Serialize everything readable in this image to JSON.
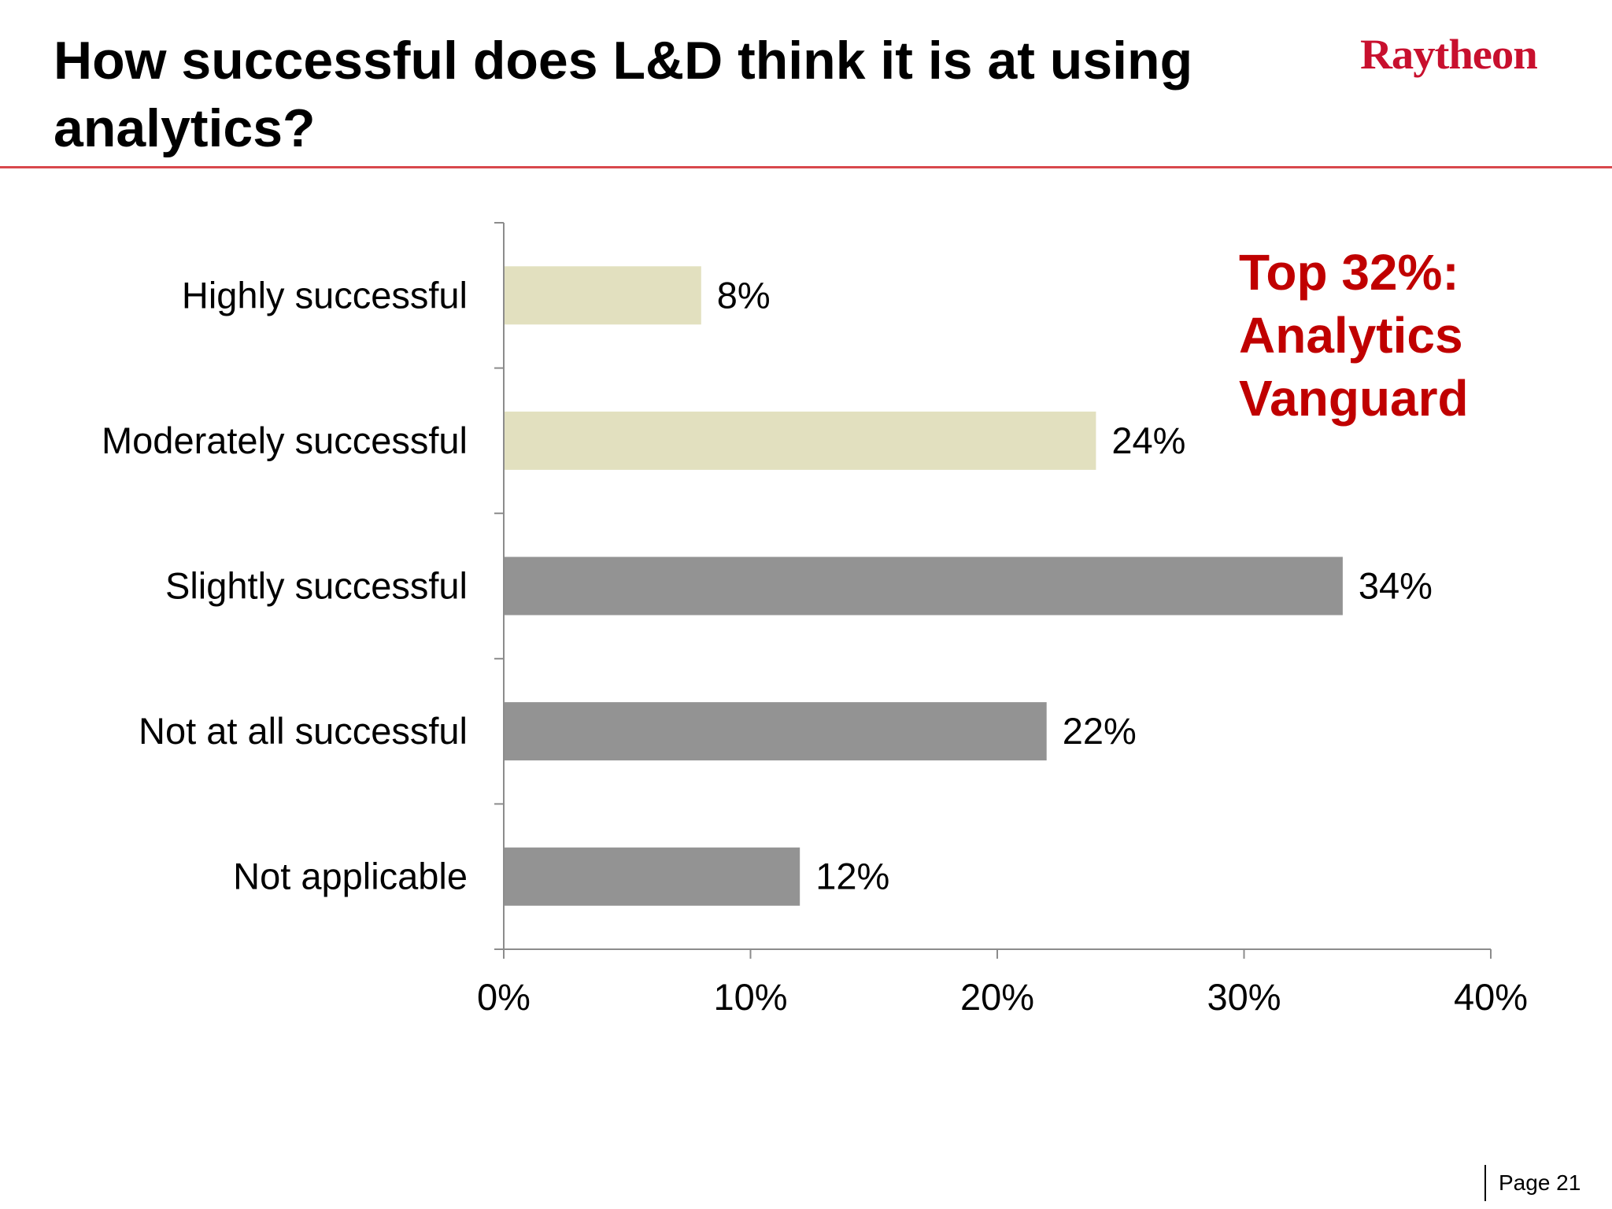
{
  "slide": {
    "title": "How successful does L&D think it is at using analytics?",
    "logo_text": "Raytheon",
    "page_label": "Page 21"
  },
  "callout": {
    "lines": [
      "Top 32%:",
      "Analytics",
      "Vanguard"
    ]
  },
  "colors": {
    "title": "#000000",
    "header_rule": "#d9484c",
    "logo": "#c8102e",
    "callout": "#c00000",
    "top_bar": "#e2e0bf",
    "other_bar": "#939393",
    "axis": "#8c8c8c",
    "text": "#000000"
  },
  "chart_data": {
    "type": "bar",
    "orientation": "horizontal",
    "categories": [
      "Highly successful",
      "Moderately successful",
      "Slightly successful",
      "Not at all successful",
      "Not applicable"
    ],
    "values": [
      8,
      24,
      34,
      22,
      12
    ],
    "data_labels": [
      "8%",
      "24%",
      "34%",
      "22%",
      "12%"
    ],
    "highlighted": [
      true,
      true,
      false,
      false,
      false
    ],
    "xlim": [
      0,
      40
    ],
    "xticks": [
      0,
      10,
      20,
      30,
      40
    ],
    "xtick_labels": [
      "0%",
      "10%",
      "20%",
      "30%",
      "40%"
    ],
    "grid": false,
    "legend": "none"
  }
}
